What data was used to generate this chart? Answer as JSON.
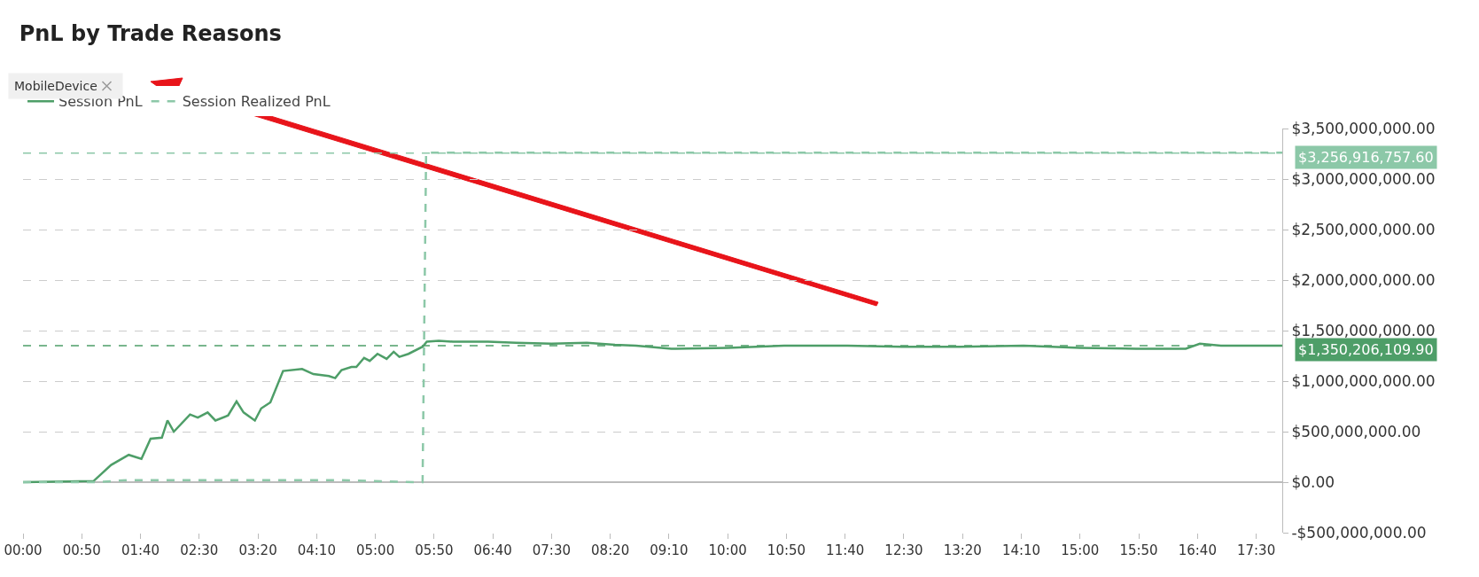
{
  "chart_data": {
    "type": "line",
    "title": "PnL by Trade Reasons",
    "annotations": [
      "MobileDevice"
    ],
    "legend": "top left",
    "grid": "y",
    "marker": "none",
    "xlim": [
      0,
      17.87
    ],
    "xticks": [
      {
        "value": 0,
        "label": "00:00"
      },
      {
        "value": 0.8333,
        "label": "00:50"
      },
      {
        "value": 1.6667,
        "label": "01:40"
      },
      {
        "value": 2.5,
        "label": "02:30"
      },
      {
        "value": 3.3333,
        "label": "03:20"
      },
      {
        "value": 4.1667,
        "label": "04:10"
      },
      {
        "value": 5,
        "label": "05:00"
      },
      {
        "value": 5.8333,
        "label": "05:50"
      },
      {
        "value": 6.6667,
        "label": "06:40"
      },
      {
        "value": 7.5,
        "label": "07:30"
      },
      {
        "value": 8.3333,
        "label": "08:20"
      },
      {
        "value": 9.1667,
        "label": "09:10"
      },
      {
        "value": 10,
        "label": "10:00"
      },
      {
        "value": 10.8333,
        "label": "10:50"
      },
      {
        "value": 11.6667,
        "label": "11:40"
      },
      {
        "value": 12.5,
        "label": "12:30"
      },
      {
        "value": 13.3333,
        "label": "13:20"
      },
      {
        "value": 14.1667,
        "label": "14:10"
      },
      {
        "value": 15,
        "label": "15:00"
      },
      {
        "value": 15.8333,
        "label": "15:50"
      },
      {
        "value": 16.6667,
        "label": "16:40"
      },
      {
        "value": 17.5,
        "label": "17:30"
      }
    ],
    "ylim": [
      -500000000,
      3500000000
    ],
    "yticks": [
      {
        "value": -500000000,
        "label": "-$500,000,000.00"
      },
      {
        "value": 0,
        "label": "$0.00"
      },
      {
        "value": 500000000,
        "label": "$500,000,000.00"
      },
      {
        "value": 1000000000,
        "label": "$1,000,000,000.00"
      },
      {
        "value": 1500000000,
        "label": "$1,500,000,000.00"
      },
      {
        "value": 2000000000,
        "label": "$2,000,000,000.00"
      },
      {
        "value": 2500000000,
        "label": "$2,500,000,000.00"
      },
      {
        "value": 3000000000,
        "label": "$3,000,000,000.00"
      },
      {
        "value": 3500000000,
        "label": "$3,500,000,000.00"
      }
    ],
    "ref_lines": [
      {
        "axis": "y",
        "value": 3256916757.6,
        "label": "$3,256,916,757.60",
        "color": "#8cc8a8",
        "line_style": "dashed"
      },
      {
        "axis": "y",
        "value": 1350206109.9,
        "label": "$1,350,206,109.90",
        "color": "#4e9e68",
        "line_style": "dashed"
      }
    ],
    "series": [
      {
        "name": "Session PnL",
        "color": "#4e9e68",
        "line_style": "solid",
        "x": [
          0,
          1.0,
          1.25,
          1.5,
          1.68,
          1.81,
          1.97,
          2.05,
          2.14,
          2.37,
          2.48,
          2.62,
          2.73,
          2.91,
          3.03,
          3.13,
          3.29,
          3.38,
          3.51,
          3.69,
          3.96,
          4.12,
          4.34,
          4.43,
          4.52,
          4.66,
          4.73,
          4.84,
          4.92,
          5.03,
          5.16,
          5.26,
          5.34,
          5.47,
          5.67,
          5.73,
          5.9,
          6.1,
          6.6,
          7.0,
          7.5,
          8.0,
          8.4,
          8.7,
          9.2,
          10.0,
          10.8,
          11.7,
          12.5,
          13.3,
          14.2,
          15.0,
          15.8,
          16.5,
          16.7,
          17.0,
          17.87
        ],
        "values": [
          0,
          10000000,
          170000000,
          270000000,
          230000000,
          430000000,
          440000000,
          610000000,
          500000000,
          670000000,
          640000000,
          690000000,
          610000000,
          660000000,
          800000000,
          690000000,
          610000000,
          730000000,
          790000000,
          1100000000,
          1120000000,
          1070000000,
          1050000000,
          1030000000,
          1110000000,
          1140000000,
          1140000000,
          1230000000,
          1200000000,
          1270000000,
          1220000000,
          1290000000,
          1240000000,
          1270000000,
          1340000000,
          1390000000,
          1400000000,
          1390000000,
          1390000000,
          1380000000,
          1370000000,
          1380000000,
          1360000000,
          1350000000,
          1320000000,
          1330000000,
          1350000000,
          1350000000,
          1340000000,
          1340000000,
          1350000000,
          1330000000,
          1320000000,
          1320000000,
          1370000000,
          1350000000,
          1350000000
        ]
      },
      {
        "name": "Session Realized PnL",
        "color": "#8cc8a8",
        "line_style": "dashed",
        "x": [
          0,
          1.0,
          1.5,
          4.5,
          5.6,
          5.67,
          5.72,
          17.87
        ],
        "values": [
          0,
          0,
          20000000,
          20000000,
          0,
          0,
          3260000000,
          3260000000
        ]
      }
    ]
  }
}
